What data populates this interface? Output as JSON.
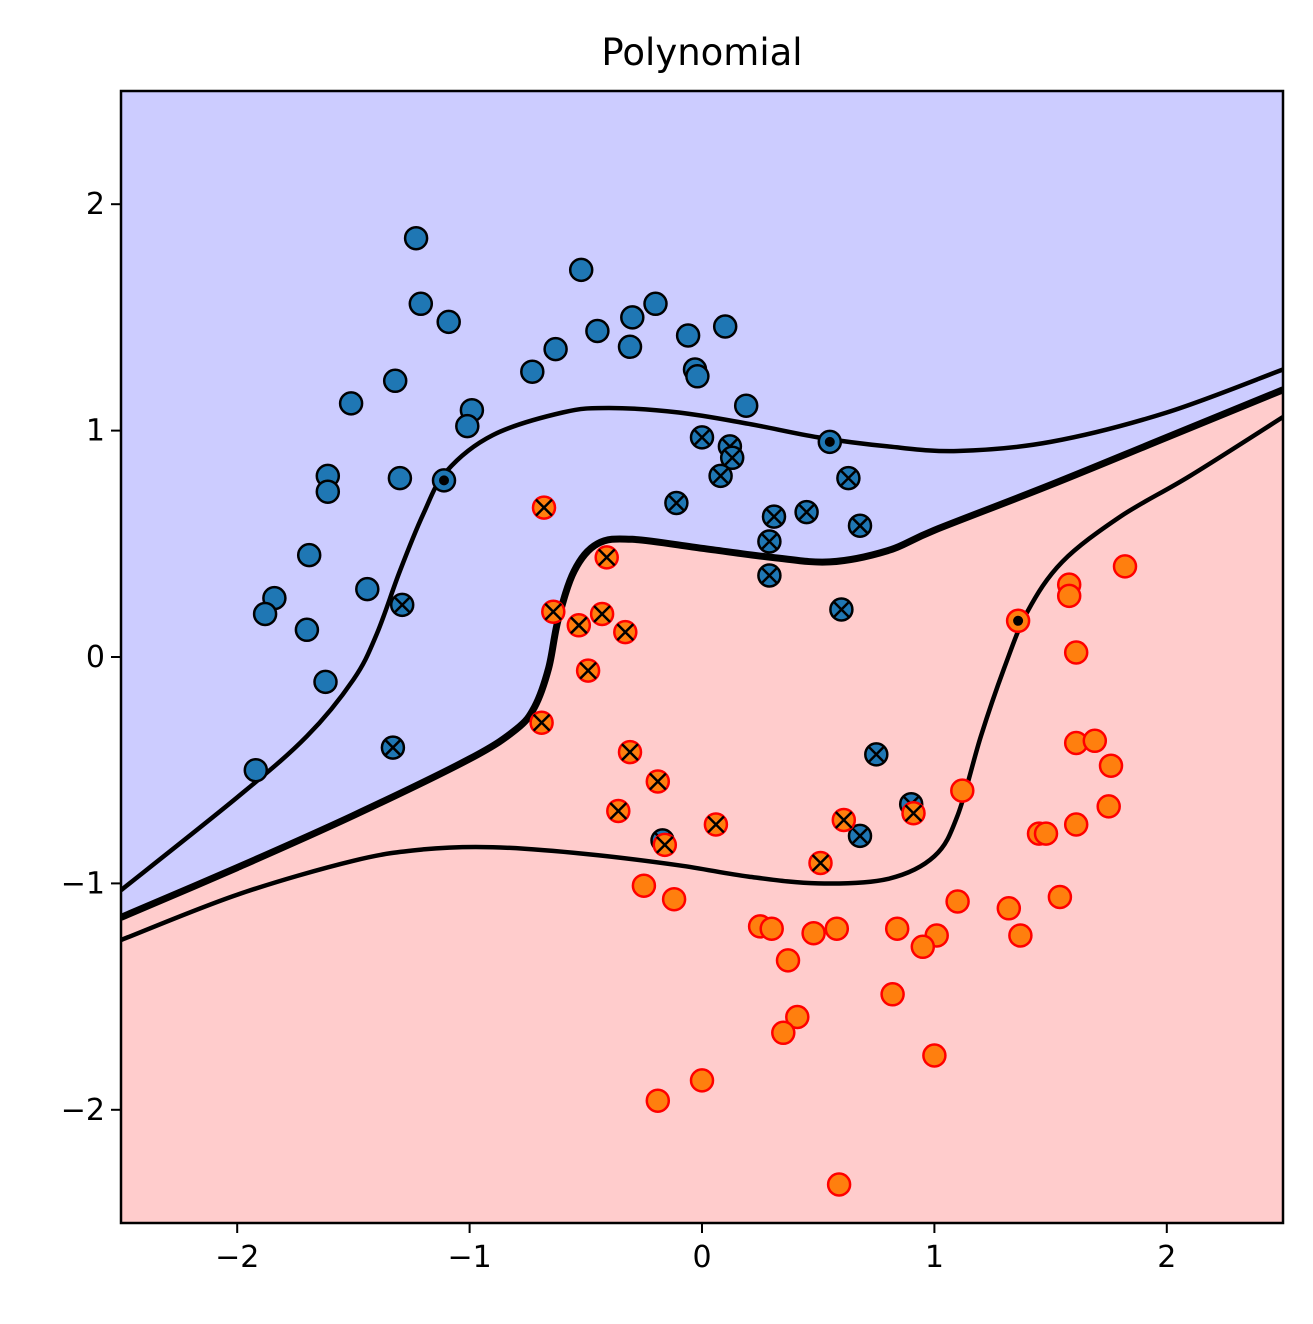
{
  "chart_data": {
    "type": "scatter",
    "title": "Polynomial",
    "xlabel": "",
    "ylabel": "",
    "xlim": [
      -2.5,
      2.5
    ],
    "ylim": [
      -2.5,
      2.5
    ],
    "xticks": [
      -2,
      -1,
      0,
      1,
      2
    ],
    "yticks": [
      -2,
      -1,
      0,
      1,
      2
    ],
    "xtick_labels": [
      "−2",
      "−1",
      "0",
      "1",
      "2"
    ],
    "ytick_labels": [
      "−2",
      "−1",
      "0",
      "1",
      "2"
    ],
    "grid": false,
    "legend": "none",
    "colors": {
      "region_class0": "#ccccff",
      "region_class1": "#ffcccc",
      "class0_fill": "#1f77b4",
      "class0_edge": "#000000",
      "class1_fill": "#ff7f0e",
      "class1_edge": "#ff0000",
      "contour": "#000000"
    },
    "decision_boundary": [
      [
        -2.5,
        -1.15
      ],
      [
        -2.0,
        -0.93
      ],
      [
        -1.5,
        -0.7
      ],
      [
        -1.0,
        -0.45
      ],
      [
        -0.8,
        -0.32
      ],
      [
        -0.72,
        -0.22
      ],
      [
        -0.66,
        -0.05
      ],
      [
        -0.62,
        0.16
      ],
      [
        -0.55,
        0.38
      ],
      [
        -0.45,
        0.5
      ],
      [
        -0.3,
        0.52
      ],
      [
        0.0,
        0.48
      ],
      [
        0.3,
        0.44
      ],
      [
        0.55,
        0.42
      ],
      [
        0.8,
        0.47
      ],
      [
        1.0,
        0.56
      ],
      [
        1.5,
        0.76
      ],
      [
        2.0,
        0.97
      ],
      [
        2.5,
        1.18
      ]
    ],
    "margin_upper": [
      [
        -2.5,
        -1.03
      ],
      [
        -2.0,
        -0.62
      ],
      [
        -1.7,
        -0.35
      ],
      [
        -1.5,
        -0.1
      ],
      [
        -1.4,
        0.1
      ],
      [
        -1.3,
        0.38
      ],
      [
        -1.2,
        0.63
      ],
      [
        -1.1,
        0.82
      ],
      [
        -0.9,
        0.98
      ],
      [
        -0.6,
        1.08
      ],
      [
        -0.4,
        1.1
      ],
      [
        -0.1,
        1.08
      ],
      [
        0.2,
        1.03
      ],
      [
        0.5,
        0.97
      ],
      [
        0.8,
        0.93
      ],
      [
        1.1,
        0.91
      ],
      [
        1.5,
        0.95
      ],
      [
        2.0,
        1.08
      ],
      [
        2.5,
        1.27
      ]
    ],
    "margin_lower": [
      [
        -2.5,
        -1.25
      ],
      [
        -2.0,
        -1.05
      ],
      [
        -1.5,
        -0.9
      ],
      [
        -1.2,
        -0.85
      ],
      [
        -0.9,
        -0.84
      ],
      [
        -0.5,
        -0.87
      ],
      [
        -0.1,
        -0.92
      ],
      [
        0.2,
        -0.97
      ],
      [
        0.5,
        -1.0
      ],
      [
        0.8,
        -0.98
      ],
      [
        1.0,
        -0.88
      ],
      [
        1.1,
        -0.7
      ],
      [
        1.2,
        -0.35
      ],
      [
        1.3,
        -0.05
      ],
      [
        1.4,
        0.2
      ],
      [
        1.55,
        0.42
      ],
      [
        1.8,
        0.62
      ],
      [
        2.1,
        0.8
      ],
      [
        2.5,
        1.06
      ]
    ],
    "series": [
      {
        "label": 0,
        "points": [
          [
            -1.23,
            1.85
          ],
          [
            -0.52,
            1.71
          ],
          [
            -1.21,
            1.56
          ],
          [
            -0.2,
            1.56
          ],
          [
            -1.09,
            1.48
          ],
          [
            -0.3,
            1.5
          ],
          [
            0.1,
            1.46
          ],
          [
            -0.45,
            1.44
          ],
          [
            -0.06,
            1.42
          ],
          [
            -0.63,
            1.36
          ],
          [
            -0.31,
            1.37
          ],
          [
            -0.73,
            1.26
          ],
          [
            -0.03,
            1.27
          ],
          [
            -0.02,
            1.24
          ],
          [
            -1.32,
            1.22
          ],
          [
            -1.51,
            1.12
          ],
          [
            0.19,
            1.11
          ],
          [
            -0.99,
            1.09
          ],
          [
            -1.01,
            1.02
          ],
          [
            -1.3,
            0.79
          ],
          [
            -1.61,
            0.8
          ],
          [
            -1.61,
            0.73
          ],
          [
            -1.69,
            0.45
          ],
          [
            -1.44,
            0.3
          ],
          [
            -1.84,
            0.26
          ],
          [
            -1.88,
            0.19
          ],
          [
            -1.7,
            0.12
          ],
          [
            -1.62,
            -0.11
          ],
          [
            -1.92,
            -0.5
          ]
        ]
      },
      {
        "label": 1,
        "points": [
          [
            1.82,
            0.4
          ],
          [
            1.58,
            0.32
          ],
          [
            1.58,
            0.27
          ],
          [
            1.61,
            0.02
          ],
          [
            1.61,
            -0.38
          ],
          [
            1.69,
            -0.37
          ],
          [
            1.76,
            -0.48
          ],
          [
            1.75,
            -0.66
          ],
          [
            1.61,
            -0.74
          ],
          [
            1.45,
            -0.78
          ],
          [
            1.48,
            -0.78
          ],
          [
            1.12,
            -0.59
          ],
          [
            1.54,
            -1.06
          ],
          [
            1.32,
            -1.11
          ],
          [
            1.37,
            -1.23
          ],
          [
            1.1,
            -1.08
          ],
          [
            1.01,
            -1.23
          ],
          [
            0.95,
            -1.28
          ],
          [
            0.84,
            -1.2
          ],
          [
            0.58,
            -1.2
          ],
          [
            0.48,
            -1.22
          ],
          [
            0.25,
            -1.19
          ],
          [
            0.3,
            -1.2
          ],
          [
            0.37,
            -1.34
          ],
          [
            -0.25,
            -1.01
          ],
          [
            -0.12,
            -1.07
          ],
          [
            0.82,
            -1.49
          ],
          [
            0.41,
            -1.59
          ],
          [
            0.35,
            -1.66
          ],
          [
            1.0,
            -1.76
          ],
          [
            0.0,
            -1.87
          ],
          [
            -0.19,
            -1.96
          ],
          [
            0.59,
            -2.33
          ]
        ]
      }
    ],
    "support_vectors": [
      {
        "x": -1.33,
        "y": -0.4,
        "label": 0
      },
      {
        "x": -1.29,
        "y": 0.23,
        "label": 0
      },
      {
        "x": -0.11,
        "y": 0.68,
        "label": 0
      },
      {
        "x": 0.0,
        "y": 0.97,
        "label": 0
      },
      {
        "x": 0.12,
        "y": 0.93,
        "label": 0
      },
      {
        "x": 0.13,
        "y": 0.88,
        "label": 0
      },
      {
        "x": 0.08,
        "y": 0.8,
        "label": 0
      },
      {
        "x": 0.31,
        "y": 0.62,
        "label": 0
      },
      {
        "x": 0.29,
        "y": 0.51,
        "label": 0
      },
      {
        "x": 0.45,
        "y": 0.64,
        "label": 0
      },
      {
        "x": 0.29,
        "y": 0.36,
        "label": 0
      },
      {
        "x": 0.63,
        "y": 0.79,
        "label": 0
      },
      {
        "x": 0.68,
        "y": 0.58,
        "label": 0
      },
      {
        "x": 0.6,
        "y": 0.21,
        "label": 0
      },
      {
        "x": 0.75,
        "y": -0.43,
        "label": 0
      },
      {
        "x": 0.9,
        "y": -0.65,
        "label": 0
      },
      {
        "x": 0.68,
        "y": -0.79,
        "label": 0
      },
      {
        "x": -0.17,
        "y": -0.81,
        "label": 0
      },
      {
        "x": -0.68,
        "y": 0.66,
        "label": 1
      },
      {
        "x": -0.41,
        "y": 0.44,
        "label": 1
      },
      {
        "x": -0.64,
        "y": 0.2,
        "label": 1
      },
      {
        "x": -0.43,
        "y": 0.19,
        "label": 1
      },
      {
        "x": -0.53,
        "y": 0.14,
        "label": 1
      },
      {
        "x": -0.33,
        "y": 0.11,
        "label": 1
      },
      {
        "x": -0.49,
        "y": -0.06,
        "label": 1
      },
      {
        "x": -0.69,
        "y": -0.29,
        "label": 1
      },
      {
        "x": -0.31,
        "y": -0.42,
        "label": 1
      },
      {
        "x": -0.19,
        "y": -0.55,
        "label": 1
      },
      {
        "x": -0.36,
        "y": -0.68,
        "label": 1
      },
      {
        "x": -0.16,
        "y": -0.83,
        "label": 1
      },
      {
        "x": 0.06,
        "y": -0.74,
        "label": 1
      },
      {
        "x": 0.61,
        "y": -0.72,
        "label": 1
      },
      {
        "x": 0.91,
        "y": -0.69,
        "label": 1
      },
      {
        "x": 0.51,
        "y": -0.91,
        "label": 1
      }
    ],
    "margin_points": [
      {
        "x": -1.11,
        "y": 0.78,
        "label": 0
      },
      {
        "x": 0.55,
        "y": 0.95,
        "label": 0
      },
      {
        "x": 1.36,
        "y": 0.16,
        "label": 1
      }
    ]
  }
}
